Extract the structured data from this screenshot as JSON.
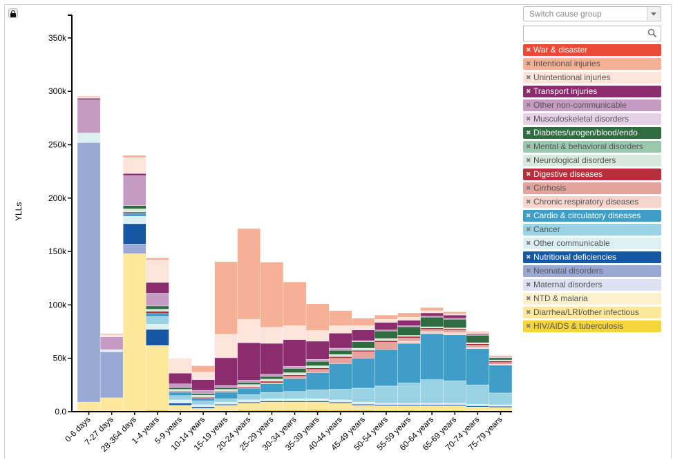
{
  "controls": {
    "switch_placeholder": "Switch cause group",
    "search_value": ""
  },
  "chart_data": {
    "type": "bar",
    "stacked": true,
    "ylabel": "YLLs",
    "ylim": [
      0,
      370000
    ],
    "yticks": [
      0,
      50000,
      100000,
      150000,
      200000,
      250000,
      300000,
      350000
    ],
    "ytick_labels": [
      "0.0",
      "50k",
      "100k",
      "150k",
      "200k",
      "250k",
      "300k",
      "350k"
    ],
    "categories": [
      "0-6 days",
      "7-27 days",
      "28-364 days",
      "1-4 years",
      "5-9 years",
      "10-14 years",
      "15-19 years",
      "20-24 years",
      "25-29 years",
      "30-34 years",
      "35-39 years",
      "40-44 years",
      "45-49 years",
      "50-54 years",
      "55-59 years",
      "60-64 years",
      "65-69 years",
      "70-74 years",
      "75-79 years"
    ],
    "series": [
      {
        "name": "HIV/AIDS & tuberculosis",
        "color": "#f5d53a",
        "dark": false,
        "values": [
          0,
          0,
          0,
          2000,
          0,
          0,
          1000,
          2000,
          2000,
          2000,
          2500,
          2000,
          2000,
          1500,
          1500,
          1500,
          1500,
          1000,
          1000
        ]
      },
      {
        "name": "Diarrhea/LRI/other infectious",
        "color": "#fce79b",
        "dark": false,
        "values": [
          9000,
          13000,
          148000,
          60000,
          6000,
          3000,
          5000,
          6000,
          7000,
          7000,
          6500,
          6000,
          4000,
          4000,
          4000,
          4000,
          4000,
          3500,
          3000
        ]
      },
      {
        "name": "NTD & malaria",
        "color": "#fbf1cd",
        "dark": false,
        "values": [
          0,
          0,
          0,
          0,
          0,
          0,
          0,
          0,
          0,
          0,
          0,
          0,
          0,
          0,
          0,
          0,
          0,
          0,
          0
        ]
      },
      {
        "name": "Maternal disorders",
        "color": "#dde1f1",
        "dark": false,
        "values": [
          0,
          0,
          0,
          0,
          0,
          0,
          0,
          0,
          0,
          0,
          0,
          0,
          0,
          0,
          0,
          0,
          0,
          0,
          0
        ]
      },
      {
        "name": "Neonatal disorders",
        "color": "#9aa8d6",
        "dark": false,
        "values": [
          243000,
          43000,
          9000,
          0,
          0,
          0,
          0,
          0,
          0,
          0,
          0,
          0,
          0,
          0,
          0,
          0,
          0,
          0,
          0
        ]
      },
      {
        "name": "Nutritional deficiencies",
        "color": "#1657a3",
        "dark": true,
        "values": [
          0,
          0,
          19000,
          15000,
          2000,
          1500,
          1000,
          1000,
          1000,
          1000,
          1000,
          1000,
          1000,
          1000,
          1000,
          1000,
          1000,
          1000,
          1000
        ]
      },
      {
        "name": "Other communicable",
        "color": "#dcf0f3",
        "dark": false,
        "values": [
          9000,
          2000,
          7000,
          5000,
          3000,
          2000,
          2000,
          2000,
          2000,
          2000,
          2000,
          2000,
          2000,
          1500,
          1500,
          1500,
          1500,
          1500,
          1500
        ]
      },
      {
        "name": "Cancer",
        "color": "#99d3e3",
        "dark": false,
        "values": [
          0,
          0,
          0,
          7000,
          4000,
          3500,
          3000,
          5000,
          6000,
          7000,
          8500,
          10000,
          13000,
          16000,
          19000,
          22000,
          21000,
          18000,
          11000
        ]
      },
      {
        "name": "Cardio & circulatory diseases",
        "color": "#3e9ec8",
        "dark": true,
        "values": [
          0,
          0,
          3000,
          3000,
          3000,
          2500,
          6000,
          6000,
          8000,
          12000,
          16000,
          24000,
          28000,
          34000,
          37000,
          43000,
          43000,
          34000,
          26000
        ]
      },
      {
        "name": "Chronic respiratory diseases",
        "color": "#f5d5cc",
        "dark": false,
        "values": [
          0,
          0,
          0,
          0,
          0,
          0,
          0,
          0,
          0,
          0,
          0,
          0,
          0,
          0,
          2000,
          2000,
          2000,
          1000,
          1000
        ]
      },
      {
        "name": "Cirrhosis",
        "color": "#e5a39e",
        "dark": false,
        "values": [
          0,
          0,
          0,
          0,
          0,
          0,
          0,
          500,
          1000,
          2000,
          3000,
          5000,
          6000,
          7000,
          3000,
          2000,
          2000,
          2000,
          1500
        ]
      },
      {
        "name": "Digestive diseases",
        "color": "#b52f3c",
        "dark": true,
        "values": [
          0,
          0,
          1000,
          2000,
          1000,
          1000,
          1000,
          1000,
          1500,
          1500,
          1500,
          1500,
          1500,
          1500,
          1500,
          1500,
          1500,
          1500,
          1500
        ]
      },
      {
        "name": "Neurological disorders",
        "color": "#d7e8dd",
        "dark": false,
        "values": [
          0,
          0,
          3000,
          2000,
          2000,
          2000,
          2000,
          2000,
          2000,
          2000,
          2000,
          2000,
          2000,
          2000,
          1000,
          1000,
          1000,
          1000,
          1000
        ]
      },
      {
        "name": "Mental & behavioral disorders",
        "color": "#9ac7ad",
        "dark": false,
        "values": [
          0,
          0,
          0,
          0,
          0,
          0,
          0,
          0,
          0,
          0,
          0,
          0,
          0,
          0,
          0,
          0,
          0,
          0,
          0
        ]
      },
      {
        "name": "Diabetes/urogen/blood/endo",
        "color": "#2f6b3f",
        "dark": true,
        "values": [
          0,
          0,
          3000,
          3000,
          1500,
          1500,
          1500,
          2000,
          2500,
          4000,
          4000,
          4000,
          6000,
          7000,
          8000,
          9000,
          8000,
          7000,
          2000
        ]
      },
      {
        "name": "Musculoskeletal disorders",
        "color": "#e6d1e6",
        "dark": false,
        "values": [
          0,
          0,
          0,
          0,
          0,
          0,
          0,
          0,
          0,
          0,
          0,
          0,
          0,
          0,
          0,
          0,
          0,
          0,
          0
        ]
      },
      {
        "name": "Other non-communicable",
        "color": "#c59ac3",
        "dark": false,
        "values": [
          31000,
          12000,
          28000,
          12000,
          3500,
          3000,
          2000,
          2000,
          2000,
          2000,
          2000,
          2000,
          1000,
          1000,
          1000,
          1000,
          1000,
          500,
          500
        ]
      },
      {
        "name": "Transport injuries",
        "color": "#8a2c6e",
        "dark": true,
        "values": [
          1500,
          0,
          2000,
          10000,
          10000,
          10000,
          26000,
          35000,
          29000,
          25000,
          17000,
          14000,
          10000,
          7000,
          5000,
          3000,
          3000,
          1000,
          500
        ]
      },
      {
        "name": "Unintentional injuries",
        "color": "#fde4da",
        "dark": false,
        "values": [
          1000,
          2000,
          15000,
          21000,
          14000,
          7000,
          22000,
          22000,
          15000,
          13000,
          10000,
          7000,
          4000,
          3000,
          3000,
          2000,
          1000,
          1000,
          1000
        ]
      },
      {
        "name": "Intentional injuries",
        "color": "#f5b095",
        "dark": false,
        "values": [
          1000,
          1000,
          2000,
          2000,
          0,
          6000,
          68000,
          85000,
          61000,
          41000,
          25000,
          14000,
          7000,
          4000,
          4000,
          3000,
          2000,
          1000,
          500
        ]
      },
      {
        "name": "War & disaster",
        "color": "#ea4a36",
        "dark": true,
        "values": [
          0,
          0,
          0,
          0,
          0,
          0,
          0,
          0,
          0,
          0,
          0,
          0,
          0,
          0,
          0,
          0,
          0,
          0,
          0
        ]
      }
    ],
    "legend_order": [
      "War & disaster",
      "Intentional injuries",
      "Unintentional injuries",
      "Transport injuries",
      "Other non-communicable",
      "Musculoskeletal disorders",
      "Diabetes/urogen/blood/endo",
      "Mental & behavioral disorders",
      "Neurological disorders",
      "Digestive diseases",
      "Cirrhosis",
      "Chronic respiratory diseases",
      "Cardio & circulatory diseases",
      "Cancer",
      "Other communicable",
      "Nutritional deficiencies",
      "Neonatal disorders",
      "Maternal disorders",
      "NTD & malaria",
      "Diarrhea/LRI/other infectious",
      "HIV/AIDS & tuberculosis"
    ],
    "legend_position": "right",
    "grid": false
  }
}
